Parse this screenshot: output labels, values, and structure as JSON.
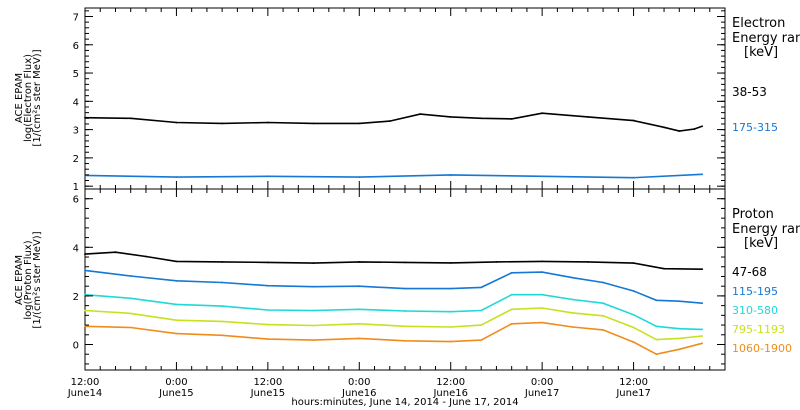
{
  "chart_data": [
    {
      "type": "line",
      "panel": "electron",
      "ylabel_lines": [
        "ACE EPAM",
        "log(Electron Flux)",
        "[1/(cm²s ster MeV)]"
      ],
      "legend_title": [
        "Electron",
        "Energy range",
        "[keV]"
      ],
      "ylim": [
        0.9,
        7.3
      ],
      "yticks": [
        1,
        2,
        3,
        4,
        5,
        6,
        7
      ],
      "xlim_hours": [
        0,
        84
      ],
      "series": [
        {
          "name": "38-53",
          "color": "#000000",
          "x": [
            0,
            6,
            12,
            18,
            24,
            30,
            36,
            40,
            44,
            48,
            52,
            56,
            60,
            66,
            72,
            76,
            78,
            80,
            81
          ],
          "y": [
            3.42,
            3.4,
            3.25,
            3.22,
            3.25,
            3.22,
            3.22,
            3.3,
            3.55,
            3.45,
            3.4,
            3.38,
            3.58,
            3.45,
            3.32,
            3.08,
            2.95,
            3.02,
            3.12
          ]
        },
        {
          "name": "175-315",
          "color": "#1478d4",
          "x": [
            0,
            12,
            24,
            36,
            48,
            60,
            72,
            81
          ],
          "y": [
            1.38,
            1.32,
            1.35,
            1.32,
            1.4,
            1.35,
            1.3,
            1.42
          ]
        }
      ]
    },
    {
      "type": "line",
      "panel": "proton",
      "ylabel_lines": [
        "ACE EPAM",
        "log(Proton Flux)",
        "[1/(cm²s ster MeV)]"
      ],
      "legend_title": [
        "Proton",
        "Energy range",
        "[keV]"
      ],
      "ylim": [
        -1.05,
        6.4
      ],
      "yticks": [
        0,
        2,
        4,
        6
      ],
      "xlim_hours": [
        0,
        84
      ],
      "series": [
        {
          "name": "47-68",
          "color": "#000000",
          "x": [
            0,
            4,
            8,
            12,
            18,
            24,
            30,
            36,
            42,
            48,
            54,
            60,
            66,
            72,
            76,
            81
          ],
          "y": [
            3.72,
            3.8,
            3.62,
            3.42,
            3.4,
            3.38,
            3.35,
            3.4,
            3.38,
            3.36,
            3.4,
            3.42,
            3.4,
            3.35,
            3.12,
            3.1
          ]
        },
        {
          "name": "115-195",
          "color": "#1478d4",
          "x": [
            0,
            6,
            12,
            18,
            24,
            30,
            36,
            42,
            48,
            52,
            56,
            60,
            64,
            68,
            72,
            75,
            78,
            81
          ],
          "y": [
            3.05,
            2.82,
            2.62,
            2.55,
            2.42,
            2.38,
            2.4,
            2.3,
            2.3,
            2.35,
            2.95,
            2.98,
            2.75,
            2.55,
            2.2,
            1.82,
            1.78,
            1.7
          ]
        },
        {
          "name": "310-580",
          "color": "#20d8d8",
          "x": [
            0,
            6,
            12,
            18,
            24,
            30,
            36,
            42,
            48,
            52,
            56,
            60,
            64,
            68,
            72,
            75,
            78,
            81
          ],
          "y": [
            2.05,
            1.9,
            1.65,
            1.58,
            1.42,
            1.4,
            1.45,
            1.38,
            1.35,
            1.4,
            2.05,
            2.05,
            1.85,
            1.7,
            1.22,
            0.75,
            0.65,
            0.62
          ]
        },
        {
          "name": "795-1193",
          "color": "#c8e020",
          "x": [
            0,
            6,
            12,
            18,
            24,
            30,
            36,
            42,
            48,
            52,
            56,
            60,
            64,
            68,
            72,
            75,
            78,
            81
          ],
          "y": [
            1.4,
            1.28,
            1.0,
            0.95,
            0.82,
            0.78,
            0.85,
            0.75,
            0.72,
            0.8,
            1.45,
            1.5,
            1.3,
            1.18,
            0.7,
            0.2,
            0.25,
            0.35
          ]
        },
        {
          "name": "1060-1900",
          "color": "#f08c1c",
          "x": [
            0,
            6,
            12,
            18,
            24,
            30,
            36,
            42,
            48,
            52,
            56,
            60,
            64,
            68,
            72,
            75,
            78,
            81
          ],
          "y": [
            0.75,
            0.7,
            0.45,
            0.38,
            0.22,
            0.18,
            0.25,
            0.15,
            0.12,
            0.18,
            0.85,
            0.9,
            0.72,
            0.6,
            0.1,
            -0.4,
            -0.2,
            0.05
          ]
        }
      ]
    }
  ],
  "x_axis": {
    "ticks": [
      {
        "hour": 0,
        "time": "12:00",
        "day": "June14"
      },
      {
        "hour": 12,
        "time": "0:00",
        "day": "June15"
      },
      {
        "hour": 24,
        "time": "12:00",
        "day": "June15"
      },
      {
        "hour": 36,
        "time": "0:00",
        "day": "June16"
      },
      {
        "hour": 48,
        "time": "12:00",
        "day": "June16"
      },
      {
        "hour": 60,
        "time": "0:00",
        "day": "June17"
      },
      {
        "hour": 72,
        "time": "12:00",
        "day": "June17"
      }
    ],
    "label": "hours:minutes, June 14, 2014 - June 17, 2014"
  }
}
